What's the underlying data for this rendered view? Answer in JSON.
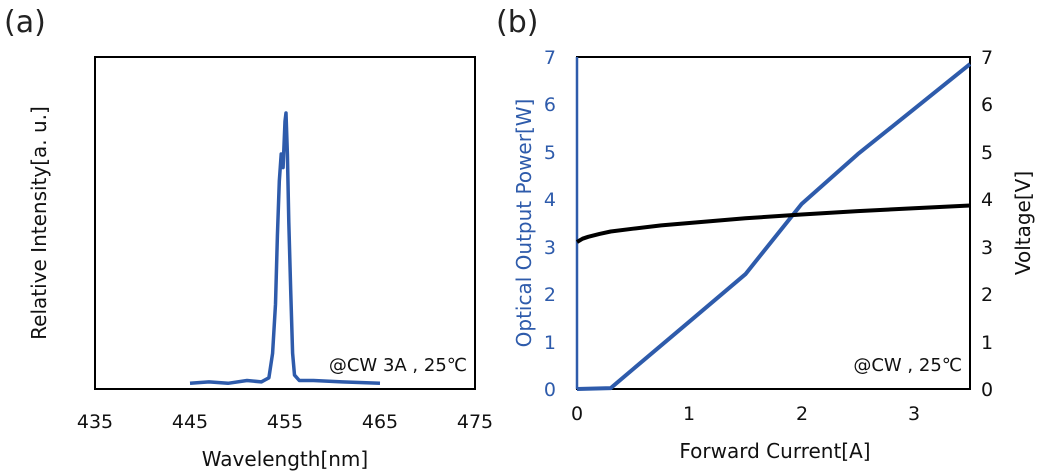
{
  "chart_data": [
    {
      "type": "line",
      "panel_label": "(a)",
      "xlabel": "Wavelength[nm]",
      "ylabel": "Relative Intensity[a. u.]",
      "xlim": [
        435,
        475
      ],
      "x_ticks": [
        "435",
        "445",
        "455",
        "465",
        "475"
      ],
      "y_ticks": "none",
      "annotation": "@CW 3A , 25℃",
      "series": [
        {
          "color": "#2e5bab",
          "x": [
            445,
            447,
            449,
            451,
            452.5,
            453.3,
            453.7,
            454.0,
            454.2,
            454.4,
            454.6,
            454.8,
            455.0,
            455.1,
            455.25,
            455.4,
            455.6,
            455.8,
            456.0,
            456.5,
            458,
            461,
            465
          ],
          "y": [
            0.01,
            0.015,
            0.01,
            0.02,
            0.015,
            0.03,
            0.12,
            0.3,
            0.55,
            0.75,
            0.85,
            0.8,
            0.97,
            1.0,
            0.85,
            0.6,
            0.35,
            0.12,
            0.04,
            0.02,
            0.02,
            0.015,
            0.01
          ]
        }
      ]
    },
    {
      "type": "line",
      "panel_label": "(b)",
      "xlabel": "Forward Current[A]",
      "ylabel_left": "Optical Output Power[W]",
      "ylabel_right": "Voltage[V]",
      "xlim": [
        0,
        3.5
      ],
      "ylim_left": [
        0,
        7
      ],
      "ylim_right": [
        0,
        7
      ],
      "x_ticks": [
        "0",
        "1",
        "2",
        "3"
      ],
      "y_ticks_left": [
        "0",
        "1",
        "2",
        "3",
        "4",
        "5",
        "6",
        "7"
      ],
      "y_ticks_right": [
        "0",
        "1",
        "2",
        "3",
        "4",
        "5",
        "6",
        "7"
      ],
      "annotation": "@CW , 25℃",
      "series": [
        {
          "axis": "left",
          "color": "#2e5bab",
          "x": [
            0,
            0.3,
            0.5,
            1.0,
            1.5,
            2.0,
            2.5,
            3.0,
            3.5
          ],
          "y": [
            0,
            0.02,
            0.42,
            1.42,
            2.42,
            3.9,
            4.95,
            5.9,
            6.85
          ]
        },
        {
          "axis": "right",
          "color": "#000000",
          "x": [
            0,
            0.05,
            0.1,
            0.2,
            0.3,
            0.5,
            0.75,
            1.0,
            1.5,
            2.0,
            2.5,
            3.0,
            3.5
          ],
          "y": [
            3.1,
            3.17,
            3.21,
            3.27,
            3.32,
            3.38,
            3.45,
            3.5,
            3.6,
            3.68,
            3.75,
            3.81,
            3.87
          ]
        }
      ]
    }
  ]
}
